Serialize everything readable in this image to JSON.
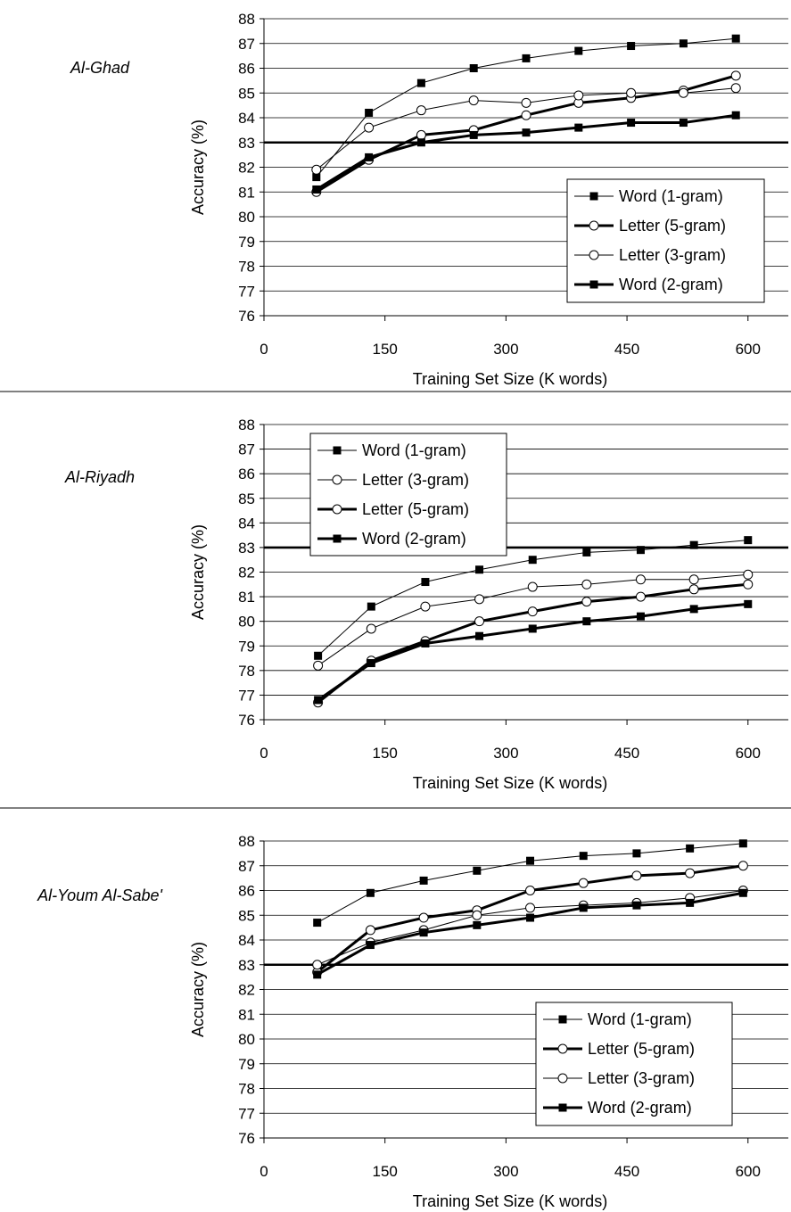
{
  "chart_data": [
    {
      "type": "line",
      "title": "Al-Ghad",
      "xlabel": "Training Set Size (K words)",
      "ylabel": "Accuracy (%)",
      "xlim": [
        0,
        650
      ],
      "ylim": [
        76,
        88
      ],
      "xticks": [
        0,
        150,
        300,
        450,
        600
      ],
      "yticks": [
        76,
        77,
        78,
        79,
        80,
        81,
        82,
        83,
        84,
        85,
        86,
        87,
        88
      ],
      "grid": "horizontal",
      "legend_position": "bottom-right",
      "baseline": 83,
      "series": [
        {
          "name": "Word (1-gram)",
          "style": "thin-square",
          "x": [
            65,
            130,
            195,
            260,
            325,
            390,
            455,
            520,
            585
          ],
          "y": [
            81.6,
            84.2,
            85.4,
            86.0,
            86.4,
            86.7,
            86.9,
            87.0,
            87.2
          ]
        },
        {
          "name": "Letter (5-gram)",
          "style": "thick-circle",
          "x": [
            65,
            130,
            195,
            260,
            325,
            390,
            455,
            520,
            585
          ],
          "y": [
            81.0,
            82.3,
            83.3,
            83.5,
            84.1,
            84.6,
            84.8,
            85.1,
            85.7
          ]
        },
        {
          "name": "Letter (3-gram)",
          "style": "thin-circle",
          "x": [
            65,
            130,
            195,
            260,
            325,
            390,
            455,
            520,
            585
          ],
          "y": [
            81.9,
            83.6,
            84.3,
            84.7,
            84.6,
            84.9,
            85.0,
            85.0,
            85.2
          ]
        },
        {
          "name": "Word (2-gram)",
          "style": "thick-square",
          "x": [
            65,
            130,
            195,
            260,
            325,
            390,
            455,
            520,
            585
          ],
          "y": [
            81.1,
            82.4,
            83.0,
            83.3,
            83.4,
            83.6,
            83.8,
            83.8,
            84.1
          ]
        }
      ]
    },
    {
      "type": "line",
      "title": "Al-Riyadh",
      "xlabel": "Training Set Size (K words)",
      "ylabel": "Accuracy (%)",
      "xlim": [
        0,
        650
      ],
      "ylim": [
        76,
        88
      ],
      "xticks": [
        0,
        150,
        300,
        450,
        600
      ],
      "yticks": [
        76,
        77,
        78,
        79,
        80,
        81,
        82,
        83,
        84,
        85,
        86,
        87,
        88
      ],
      "grid": "horizontal",
      "legend_position": "top-left",
      "baseline": 83,
      "series": [
        {
          "name": "Word (1-gram)",
          "style": "thin-square",
          "x": [
            67,
            133,
            200,
            267,
            333,
            400,
            467,
            533,
            600
          ],
          "y": [
            78.6,
            80.6,
            81.6,
            82.1,
            82.5,
            82.8,
            82.9,
            83.1,
            83.3
          ]
        },
        {
          "name": "Letter (3-gram)",
          "style": "thin-circle",
          "x": [
            67,
            133,
            200,
            267,
            333,
            400,
            467,
            533,
            600
          ],
          "y": [
            78.2,
            79.7,
            80.6,
            80.9,
            81.4,
            81.5,
            81.7,
            81.7,
            81.9
          ]
        },
        {
          "name": "Letter (5-gram)",
          "style": "thick-circle",
          "x": [
            67,
            133,
            200,
            267,
            333,
            400,
            467,
            533,
            600
          ],
          "y": [
            76.7,
            78.4,
            79.2,
            80.0,
            80.4,
            80.8,
            81.0,
            81.3,
            81.5
          ]
        },
        {
          "name": "Word (2-gram)",
          "style": "thick-square",
          "x": [
            67,
            133,
            200,
            267,
            333,
            400,
            467,
            533,
            600
          ],
          "y": [
            76.8,
            78.3,
            79.1,
            79.4,
            79.7,
            80.0,
            80.2,
            80.5,
            80.7
          ]
        }
      ]
    },
    {
      "type": "line",
      "title": "Al-Youm Al-Sabe'",
      "xlabel": "Training Set Size (K words)",
      "ylabel": "Accuracy (%)",
      "xlim": [
        0,
        650
      ],
      "ylim": [
        76,
        88
      ],
      "xticks": [
        0,
        150,
        300,
        450,
        600
      ],
      "yticks": [
        76,
        77,
        78,
        79,
        80,
        81,
        82,
        83,
        84,
        85,
        86,
        87,
        88
      ],
      "grid": "horizontal",
      "legend_position": "bottom-right",
      "baseline": 83,
      "series": [
        {
          "name": "Word (1-gram)",
          "style": "thin-square",
          "x": [
            66,
            132,
            198,
            264,
            330,
            396,
            462,
            528,
            594
          ],
          "y": [
            84.7,
            85.9,
            86.4,
            86.8,
            87.2,
            87.4,
            87.5,
            87.7,
            87.9
          ]
        },
        {
          "name": "Letter (5-gram)",
          "style": "thick-circle",
          "x": [
            66,
            132,
            198,
            264,
            330,
            396,
            462,
            528,
            594
          ],
          "y": [
            82.7,
            84.4,
            84.9,
            85.2,
            86.0,
            86.3,
            86.6,
            86.7,
            87.0
          ]
        },
        {
          "name": "Letter (3-gram)",
          "style": "thin-circle",
          "x": [
            66,
            132,
            198,
            264,
            330,
            396,
            462,
            528,
            594
          ],
          "y": [
            83.0,
            83.9,
            84.4,
            85.0,
            85.3,
            85.4,
            85.5,
            85.7,
            86.0
          ]
        },
        {
          "name": "Word (2-gram)",
          "style": "thick-square",
          "x": [
            66,
            132,
            198,
            264,
            330,
            396,
            462,
            528,
            594
          ],
          "y": [
            82.6,
            83.8,
            84.3,
            84.6,
            84.9,
            85.3,
            85.4,
            85.5,
            85.9
          ]
        }
      ]
    }
  ]
}
